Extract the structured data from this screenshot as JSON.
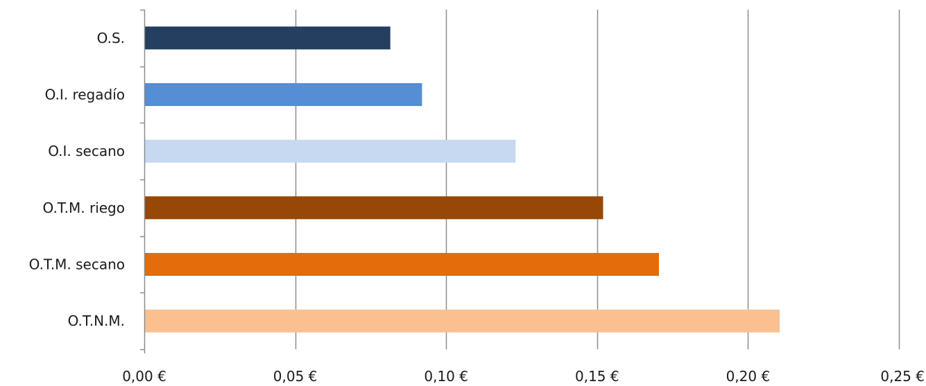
{
  "chart_data": {
    "type": "bar",
    "orientation": "horizontal",
    "title": "",
    "xlabel": "",
    "ylabel": "",
    "xlim": [
      0,
      0.25
    ],
    "grid": "vertical",
    "legend": "none",
    "categories": [
      "O.S.",
      "O.I. regadío",
      "O.I. secano",
      "O.T.M. riego",
      "O.T.M. secano",
      "O.T.N.M."
    ],
    "values": [
      0.0815,
      0.092,
      0.123,
      0.152,
      0.1705,
      0.2105
    ],
    "colors": [
      "#243f60",
      "#558ed5",
      "#c6d9f1",
      "#974806",
      "#e46c0a",
      "#fac090"
    ],
    "x_ticks": [
      0,
      0.05,
      0.1,
      0.15,
      0.2,
      0.25
    ],
    "x_tick_labels": [
      "0,00 €",
      "0,05 €",
      "0,10 €",
      "0,15 €",
      "0,20 €",
      "0,25 €"
    ]
  }
}
